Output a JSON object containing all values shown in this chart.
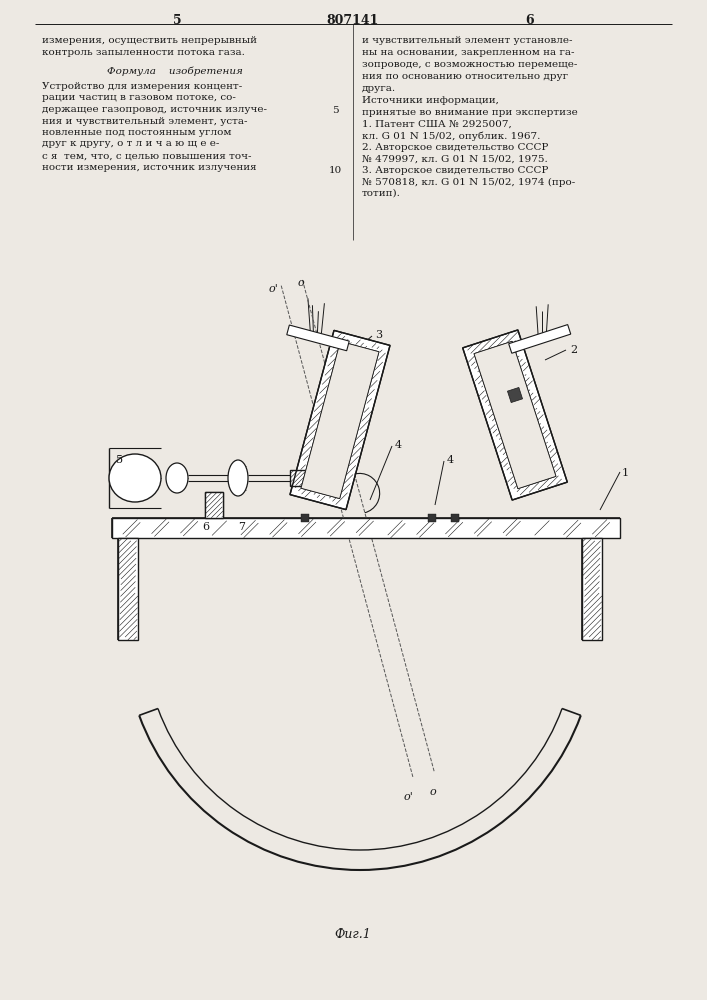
{
  "background_color": "#ede9e3",
  "line_color": "#1a1a1a",
  "text_color": "#1a1a1a",
  "title_text": "807141",
  "page_num_left": "5",
  "page_num_right": "6",
  "fig_label": "Фиг.1",
  "left_col_line1": "измерения, осуществить непрерывный",
  "left_col_line2": "контроль запыленности потока газа.",
  "formula_header": "Формула    изобретения",
  "formula_lines": [
    "Устройство для измерения концент-",
    "рации частиц в газовом потоке, со-",
    "держащее газопровод, источник излуче-",
    "ния и чувствительный элемент, уста-",
    "новленные под постоянным углом",
    "друг к другу, о т л и ч а ю щ е е-",
    "с я  тем, что, с целью повышения точ-",
    "ности измерения, источник излучения"
  ],
  "right_col_lines": [
    "и чувствительный элемент установле-",
    "ны на основании, закрепленном на га-",
    "зопроводе, с возможностью перемеще-",
    "ния по основанию относительно друг",
    "друга."
  ],
  "sources_header": "Источники информации,",
  "sources_subheader": "принятые во внимание при экспертизе",
  "sources": [
    "1. Патент США № 2925007,",
    "кл. G 01 N 15/02, опублик. 1967.",
    "2. Авторское свидетельство СССР",
    "№ 479997, кл. G 01 N 15/02, 1975.",
    "3. Авторское свидетельство СССР",
    "№ 570818, кл. G 01 N 15/02, 1974 (про-",
    "тотип)."
  ]
}
